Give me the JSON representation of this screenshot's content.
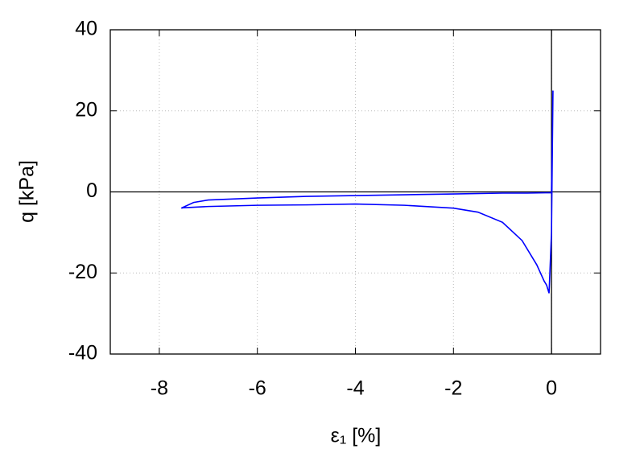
{
  "chart_data": {
    "type": "line",
    "xlabel": "ε₁ [%]",
    "ylabel": "q [kPa]",
    "xlim": [
      -9,
      1
    ],
    "ylim": [
      -40,
      40
    ],
    "xticks": [
      -8,
      -6,
      -4,
      -2,
      0
    ],
    "yticks": [
      -40,
      -20,
      0,
      20,
      40
    ],
    "grid": true,
    "series": [
      {
        "color": "#0000ff",
        "x": [
          0,
          0.03,
          0.0,
          -0.05,
          -0.1,
          -0.15,
          -0.3,
          -0.6,
          -1,
          -1.5,
          -2,
          -3,
          -4,
          -5,
          -6,
          -7,
          -7.5,
          -7.55,
          -7.3,
          -7,
          -6,
          -5,
          -4,
          -3,
          -2,
          -1,
          -0.5,
          0
        ],
        "values": [
          0,
          25,
          -10,
          -25,
          -23,
          -22,
          -18,
          -12,
          -7.5,
          -5,
          -4,
          -3.3,
          -3,
          -3.2,
          -3.3,
          -3.6,
          -3.9,
          -4,
          -2.6,
          -2,
          -1.5,
          -1.1,
          -0.9,
          -0.7,
          -0.5,
          -0.3,
          -0.3,
          -0.2
        ]
      }
    ]
  }
}
